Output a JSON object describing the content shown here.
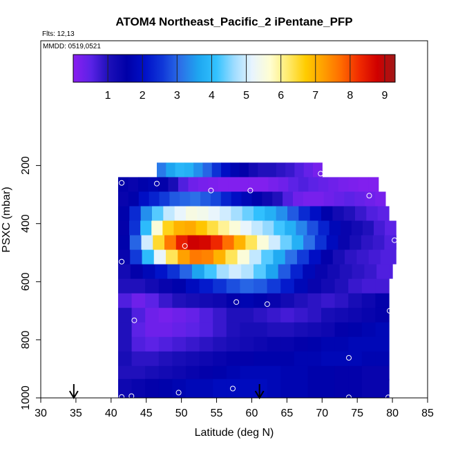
{
  "chart_data": {
    "type": "heatmap",
    "title": "ATOM4 Northeast_Pacific_2 iPentane_PFP",
    "flights_label": "Flts: 12,13",
    "dates_label": "MMDD: 0519,0521",
    "xlabel": "Latitude (deg N)",
    "ylabel": "PSXC (mbar)",
    "xlim": [
      30,
      85
    ],
    "ylim": [
      1000,
      0
    ],
    "x_ticks": [
      "30",
      "35",
      "40",
      "45",
      "50",
      "55",
      "60",
      "65",
      "70",
      "75",
      "80",
      "85"
    ],
    "y_ticks": [
      "200",
      "400",
      "600",
      "800",
      "1000"
    ],
    "colorbar": {
      "range": [
        0,
        9.3
      ],
      "ticks": [
        "1",
        "2",
        "3",
        "4",
        "5",
        "6",
        "7",
        "8",
        "9"
      ],
      "colors": [
        "#8a1ef0",
        "#5a22e6",
        "#1c0fb8",
        "#0000a8",
        "#0010c8",
        "#1038d8",
        "#2c70e8",
        "#1ea6f0",
        "#32c2ff",
        "#9edcff",
        "#e8f4ff",
        "#fffed2",
        "#ffeb6e",
        "#ffcc00",
        "#ff9e00",
        "#ff6a00",
        "#f02a00",
        "#d00000",
        "#a01818"
      ]
    },
    "layers": [
      {
        "p": 240,
        "lat_min": 46.5,
        "lat_max": 70,
        "values": [
          3.2,
          3.6,
          3.9,
          3.8,
          3.4,
          3.0,
          2.5,
          2.0,
          1.7,
          1.5,
          1.2,
          1.0,
          1.0,
          0.9,
          0.8,
          0.6,
          0.4,
          0.2
        ]
      },
      {
        "p": 290,
        "lat_min": 41,
        "lat_max": 78,
        "values": [
          1.5,
          1.4,
          1.6,
          1.7,
          1.5,
          1.1,
          0.6,
          0.3,
          0.2,
          0.15,
          0.1,
          0.1,
          0.1,
          0.1,
          0.1,
          0.2,
          0.3,
          0.5,
          0.6,
          0.5,
          0.4,
          0.3,
          0.2,
          0.15,
          0.1,
          0.1
        ]
      },
      {
        "p": 340,
        "lat_min": 41,
        "lat_max": 79,
        "values": [
          1.4,
          1.6,
          2.0,
          2.3,
          2.6,
          2.9,
          3.0,
          3.1,
          2.9,
          2.7,
          2.3,
          2.0,
          1.8,
          1.6,
          1.3,
          1.0,
          0.6,
          0.3,
          0.2,
          0.2,
          0.3,
          0.4,
          0.5,
          0.4,
          0.3,
          0.2
        ]
      },
      {
        "p": 390,
        "lat_min": 41,
        "lat_max": 79.5,
        "values": [
          1.6,
          2.4,
          3.4,
          4.3,
          4.9,
          5.2,
          5.5,
          5.4,
          5.2,
          5.0,
          4.7,
          4.4,
          4.1,
          3.8,
          3.4,
          2.9,
          2.4,
          2.0,
          1.6,
          1.2,
          1.0,
          0.8,
          0.6,
          0.5
        ]
      },
      {
        "p": 440,
        "lat_min": 41,
        "lat_max": 80.5,
        "values": [
          1.5,
          2.5,
          4.0,
          5.6,
          6.6,
          7.0,
          7.1,
          6.8,
          6.4,
          6.0,
          5.6,
          5.2,
          4.9,
          4.6,
          4.2,
          3.8,
          3.3,
          2.8,
          2.3,
          1.8,
          1.4,
          1.2,
          1.0,
          0.7,
          0.5
        ]
      },
      {
        "p": 490,
        "lat_min": 41,
        "lat_max": 80.5,
        "values": [
          1.6,
          3.0,
          5.0,
          6.5,
          7.6,
          8.4,
          8.8,
          8.7,
          8.3,
          7.7,
          7.0,
          6.3,
          5.6,
          5.0,
          4.4,
          3.8,
          3.1,
          2.5,
          1.9,
          1.4,
          1.1,
          0.9,
          0.8,
          0.6
        ]
      },
      {
        "p": 540,
        "lat_min": 41,
        "lat_max": 80,
        "values": [
          1.4,
          2.6,
          4.0,
          5.2,
          6.3,
          7.2,
          7.6,
          7.5,
          7.0,
          6.3,
          5.6,
          4.9,
          4.3,
          3.7,
          3.1,
          2.6,
          2.0,
          1.5,
          1.1,
          0.9,
          0.8,
          0.7,
          0.6
        ]
      },
      {
        "p": 590,
        "lat_min": 41,
        "lat_max": 79.5,
        "values": [
          1.2,
          1.5,
          1.8,
          2.1,
          2.5,
          3.0,
          3.6,
          4.2,
          4.7,
          5.0,
          4.8,
          4.3,
          3.6,
          2.9,
          2.3,
          1.8,
          1.4,
          1.2,
          1.0,
          0.9,
          0.8,
          0.6
        ]
      },
      {
        "p": 640,
        "lat_min": 41,
        "lat_max": 79.5,
        "values": [
          1.0,
          1.0,
          1.2,
          1.4,
          1.6,
          1.9,
          2.2,
          2.5,
          2.8,
          3.0,
          2.9,
          2.6,
          2.2,
          1.8,
          1.4,
          1.2,
          1.0,
          0.8,
          0.7,
          0.7
        ]
      },
      {
        "p": 690,
        "lat_min": 41,
        "lat_max": 79.5,
        "values": [
          0.6,
          0.3,
          0.5,
          0.8,
          1.0,
          1.1,
          1.2,
          1.3,
          1.5,
          1.7,
          1.6,
          1.4,
          1.2,
          1.0,
          0.9,
          0.8,
          0.9,
          1.1,
          1.3,
          1.5
        ]
      },
      {
        "p": 740,
        "lat_min": 41,
        "lat_max": 79.5,
        "values": [
          1.0,
          0.6,
          0.3,
          0.2,
          0.3,
          0.4,
          0.6,
          0.8,
          1.0,
          1.0,
          0.9,
          0.8,
          0.7,
          0.8,
          0.9,
          1.1,
          1.2,
          1.3,
          1.4,
          1.5
        ]
      },
      {
        "p": 790,
        "lat_min": 41,
        "lat_max": 79.5,
        "values": [
          1.0,
          0.5,
          0.3,
          0.3,
          0.4,
          0.5,
          0.6,
          0.8,
          1.0,
          1.1,
          1.1,
          1.0,
          1.0,
          1.1,
          1.2,
          1.3,
          1.5,
          1.6,
          1.7,
          1.8
        ]
      },
      {
        "p": 840,
        "lat_min": 41,
        "lat_max": 79.5,
        "values": [
          1.0,
          0.6,
          0.5,
          0.6,
          0.7,
          0.8,
          0.9,
          1.0,
          1.1,
          1.2,
          1.3,
          1.4,
          1.4,
          1.5,
          1.6,
          1.7,
          1.7,
          1.8,
          1.8,
          1.8
        ]
      },
      {
        "p": 890,
        "lat_min": 41,
        "lat_max": 79.5,
        "values": [
          1.1,
          0.9,
          0.9,
          1.0,
          1.1,
          1.2,
          1.3,
          1.4,
          1.5,
          1.5,
          1.6,
          1.6,
          1.6,
          1.7,
          1.7,
          1.8,
          1.8,
          1.8,
          1.7,
          1.7
        ]
      },
      {
        "p": 940,
        "lat_min": 41,
        "lat_max": 79.5,
        "values": [
          1.0,
          1.0,
          1.1,
          1.2,
          1.3,
          1.4,
          1.5,
          1.6,
          1.7,
          1.8,
          1.8,
          1.8,
          1.7,
          1.7,
          1.6,
          1.6,
          1.5,
          1.5,
          1.4,
          1.4
        ]
      },
      {
        "p": 985,
        "lat_min": 41,
        "lat_max": 79.5,
        "values": [
          1.3,
          1.4,
          1.5,
          1.6,
          1.7,
          1.8,
          1.8,
          1.9,
          1.9,
          1.9,
          1.9,
          1.8,
          1.7,
          1.7,
          1.6,
          1.6,
          1.5,
          1.5,
          1.4,
          1.4
        ]
      }
    ],
    "sample_points": [
      {
        "lat": 69.8,
        "p": 228
      },
      {
        "lat": 41.5,
        "p": 260
      },
      {
        "lat": 46.5,
        "p": 262
      },
      {
        "lat": 54.2,
        "p": 286
      },
      {
        "lat": 59.8,
        "p": 286
      },
      {
        "lat": 76.7,
        "p": 304
      },
      {
        "lat": 80.3,
        "p": 457
      },
      {
        "lat": 50.5,
        "p": 477
      },
      {
        "lat": 41.5,
        "p": 531
      },
      {
        "lat": 57.8,
        "p": 670
      },
      {
        "lat": 62.2,
        "p": 677
      },
      {
        "lat": 79.6,
        "p": 700
      },
      {
        "lat": 43.3,
        "p": 733
      },
      {
        "lat": 73.8,
        "p": 862
      },
      {
        "lat": 57.3,
        "p": 968
      },
      {
        "lat": 49.6,
        "p": 982
      },
      {
        "lat": 42.9,
        "p": 994
      },
      {
        "lat": 41.5,
        "p": 997
      },
      {
        "lat": 73.8,
        "p": 998
      },
      {
        "lat": 79.4,
        "p": 998
      }
    ],
    "arrows": [
      34.7,
      61.1
    ]
  }
}
